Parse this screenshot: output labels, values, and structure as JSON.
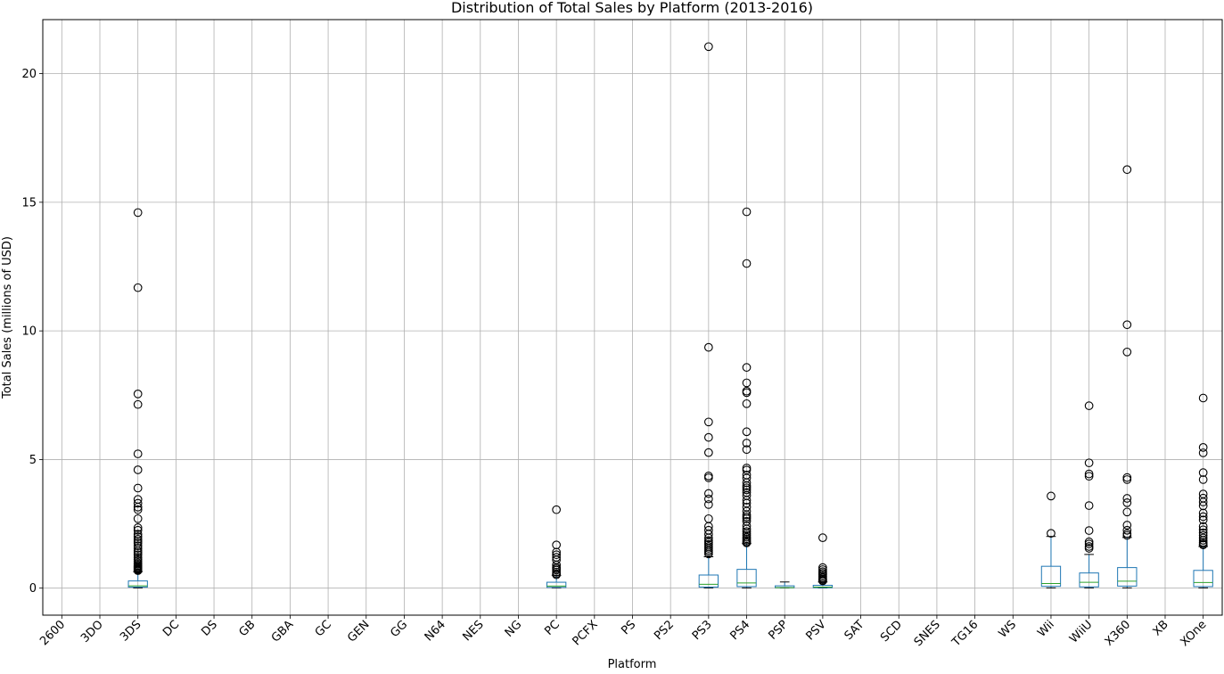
{
  "chart_data": {
    "type": "boxplot",
    "title": "Distribution of Total Sales by Platform (2013-2016)",
    "xlabel": "Platform",
    "ylabel": "Total Sales (millions of USD)",
    "ylim": [
      -1.05,
      22.1
    ],
    "yticks": [
      0,
      5,
      10,
      15,
      20
    ],
    "grid": true,
    "colors": {
      "box": "#1f77b4",
      "median": "#2ca02c",
      "grid": "#b0b0b0",
      "flier": "#000000"
    },
    "categories": [
      "2600",
      "3DO",
      "3DS",
      "DC",
      "DS",
      "GB",
      "GBA",
      "GC",
      "GEN",
      "GG",
      "N64",
      "NES",
      "NG",
      "PC",
      "PCFX",
      "PS",
      "PS2",
      "PS3",
      "PS4",
      "PSP",
      "PSV",
      "SAT",
      "SCD",
      "SNES",
      "TG16",
      "WS",
      "Wii",
      "WiiU",
      "X360",
      "XB",
      "XOne"
    ],
    "boxes": [
      {
        "category": "3DS",
        "whislo": 0.01,
        "q1": 0.04,
        "med": 0.09,
        "q3": 0.28,
        "whishi": 0.64,
        "fliers": [
          14.6,
          11.68,
          7.55,
          7.14,
          5.22,
          4.6,
          3.89,
          3.45,
          3.3,
          3.15,
          3.05,
          2.7,
          2.35,
          2.25,
          2.1,
          2.0,
          1.9,
          1.82,
          1.75,
          1.65,
          1.55,
          1.45,
          1.38,
          1.3,
          1.2,
          1.12,
          1.05,
          0.98,
          0.93,
          0.88,
          0.84,
          0.8,
          0.76,
          0.73,
          0.7,
          0.68
        ]
      },
      {
        "category": "PC",
        "whislo": 0.01,
        "q1": 0.03,
        "med": 0.08,
        "q3": 0.23,
        "whislo_note": "",
        "whishi": 0.5,
        "fliers": [
          3.05,
          1.68,
          1.4,
          1.3,
          1.2,
          1.1,
          0.9,
          0.8,
          0.75,
          0.7,
          0.62,
          0.56,
          0.52
        ]
      },
      {
        "category": "PS3",
        "whislo": 0.01,
        "q1": 0.04,
        "med": 0.15,
        "q3": 0.51,
        "whishi": 1.22,
        "fliers": [
          21.05,
          9.36,
          6.46,
          5.86,
          5.27,
          4.36,
          4.29,
          3.68,
          3.47,
          3.25,
          2.7,
          2.4,
          2.25,
          2.1,
          1.95,
          1.85,
          1.78,
          1.7,
          1.62,
          1.55,
          1.47,
          1.4,
          1.33
        ]
      },
      {
        "category": "PS4",
        "whislo": 0.01,
        "q1": 0.06,
        "med": 0.2,
        "q3": 0.73,
        "whishi": 1.73,
        "fliers": [
          14.63,
          12.62,
          8.58,
          7.98,
          7.66,
          7.6,
          7.17,
          6.08,
          5.64,
          5.39,
          4.67,
          4.59,
          4.4,
          4.28,
          4.1,
          3.98,
          3.9,
          3.82,
          3.72,
          3.6,
          3.42,
          3.3,
          3.15,
          2.99,
          2.85,
          2.77,
          2.7,
          2.6,
          2.42,
          2.3,
          2.2,
          2.12,
          2.05,
          1.98,
          1.92,
          1.86,
          1.8,
          1.76
        ]
      },
      {
        "category": "PSP",
        "whislo": 0.01,
        "q1": 0.02,
        "med": 0.02,
        "q3": 0.09,
        "whishi": 0.24,
        "fliers": []
      },
      {
        "category": "PSV",
        "whislo": 0.01,
        "q1": 0.02,
        "med": 0.04,
        "q3": 0.11,
        "whishi": 0.24,
        "fliers": [
          1.96,
          0.8,
          0.72,
          0.64,
          0.58,
          0.52,
          0.46,
          0.4,
          0.35,
          0.31,
          0.28
        ]
      },
      {
        "category": "Wii",
        "whislo": 0.01,
        "q1": 0.07,
        "med": 0.18,
        "q3": 0.85,
        "whishi": 2.01,
        "fliers": [
          3.58,
          2.13
        ]
      },
      {
        "category": "WiiU",
        "whislo": 0.01,
        "q1": 0.05,
        "med": 0.23,
        "q3": 0.59,
        "whishi": 1.31,
        "fliers": [
          7.09,
          4.87,
          4.44,
          4.35,
          3.21,
          2.24,
          1.8,
          1.72,
          1.62,
          1.55
        ]
      },
      {
        "category": "X360",
        "whislo": 0.01,
        "q1": 0.08,
        "med": 0.27,
        "q3": 0.8,
        "whishi": 1.97,
        "fliers": [
          16.27,
          10.24,
          9.18,
          4.3,
          4.22,
          3.49,
          3.32,
          2.96,
          2.45,
          2.25,
          2.12,
          2.05
        ]
      },
      {
        "category": "XOne",
        "whislo": 0.01,
        "q1": 0.06,
        "med": 0.22,
        "q3": 0.69,
        "whishi": 1.62,
        "fliers": [
          7.39,
          5.47,
          5.26,
          4.49,
          4.22,
          3.66,
          3.5,
          3.35,
          3.2,
          2.92,
          2.78,
          2.65,
          2.4,
          2.27,
          2.15,
          2.05,
          1.95,
          1.86,
          1.78,
          1.72,
          1.68
        ]
      }
    ]
  }
}
